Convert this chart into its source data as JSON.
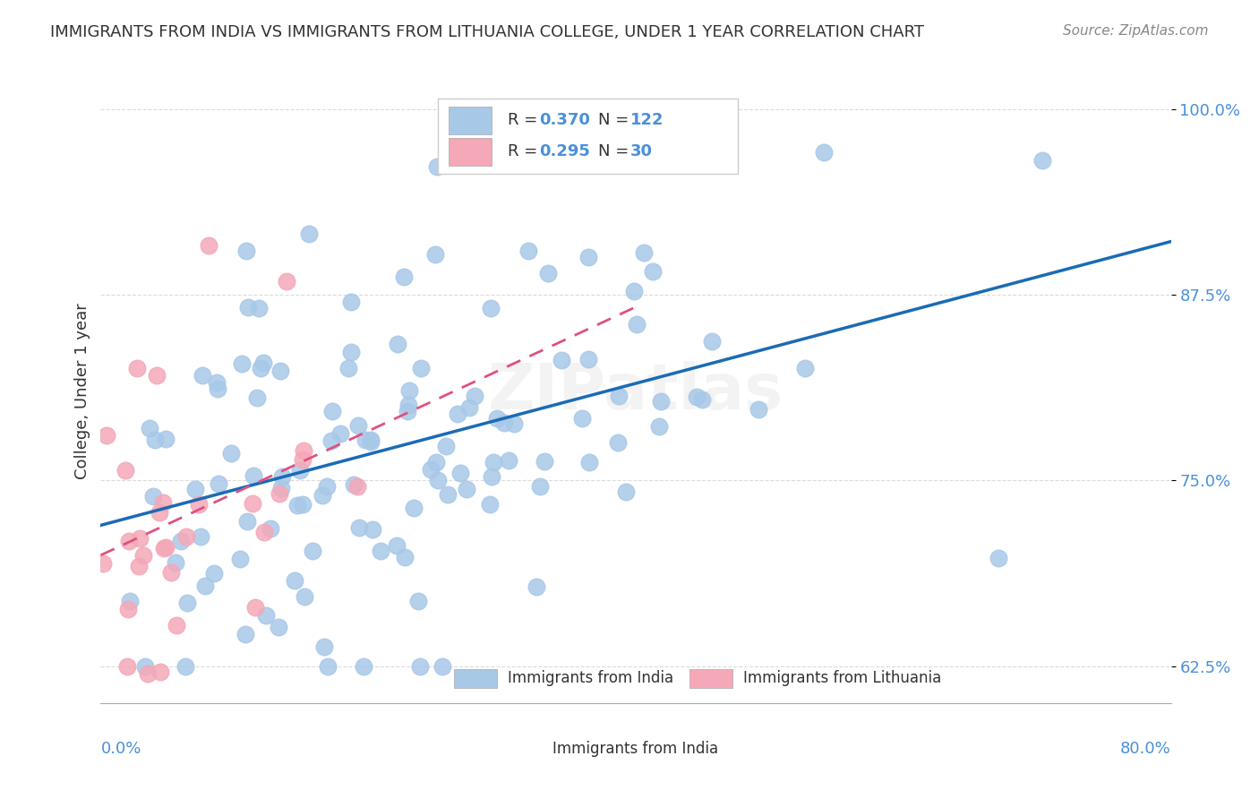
{
  "title": "IMMIGRANTS FROM INDIA VS IMMIGRANTS FROM LITHUANIA COLLEGE, UNDER 1 YEAR CORRELATION CHART",
  "source": "Source: ZipAtlas.com",
  "xlabel_bottom_left": "0.0%",
  "xlabel_bottom_right": "80.0%",
  "ylabel": "College, Under 1 year",
  "legend_india": "Immigrants from India",
  "legend_lithuania": "Immigrants from Lithuania",
  "R_india": 0.37,
  "N_india": 122,
  "R_lithuania": 0.295,
  "N_lithuania": 30,
  "x_min": 0.0,
  "x_max": 80.0,
  "y_min": 60.0,
  "y_max": 102.0,
  "y_ticks": [
    62.5,
    75.0,
    87.5,
    100.0
  ],
  "india_color": "#a8c8e8",
  "india_line_color": "#1a6bb5",
  "lithuania_color": "#f4a8b8",
  "lithuania_line_color": "#e05080",
  "watermark": "ZIPatlas",
  "background_color": "#ffffff"
}
